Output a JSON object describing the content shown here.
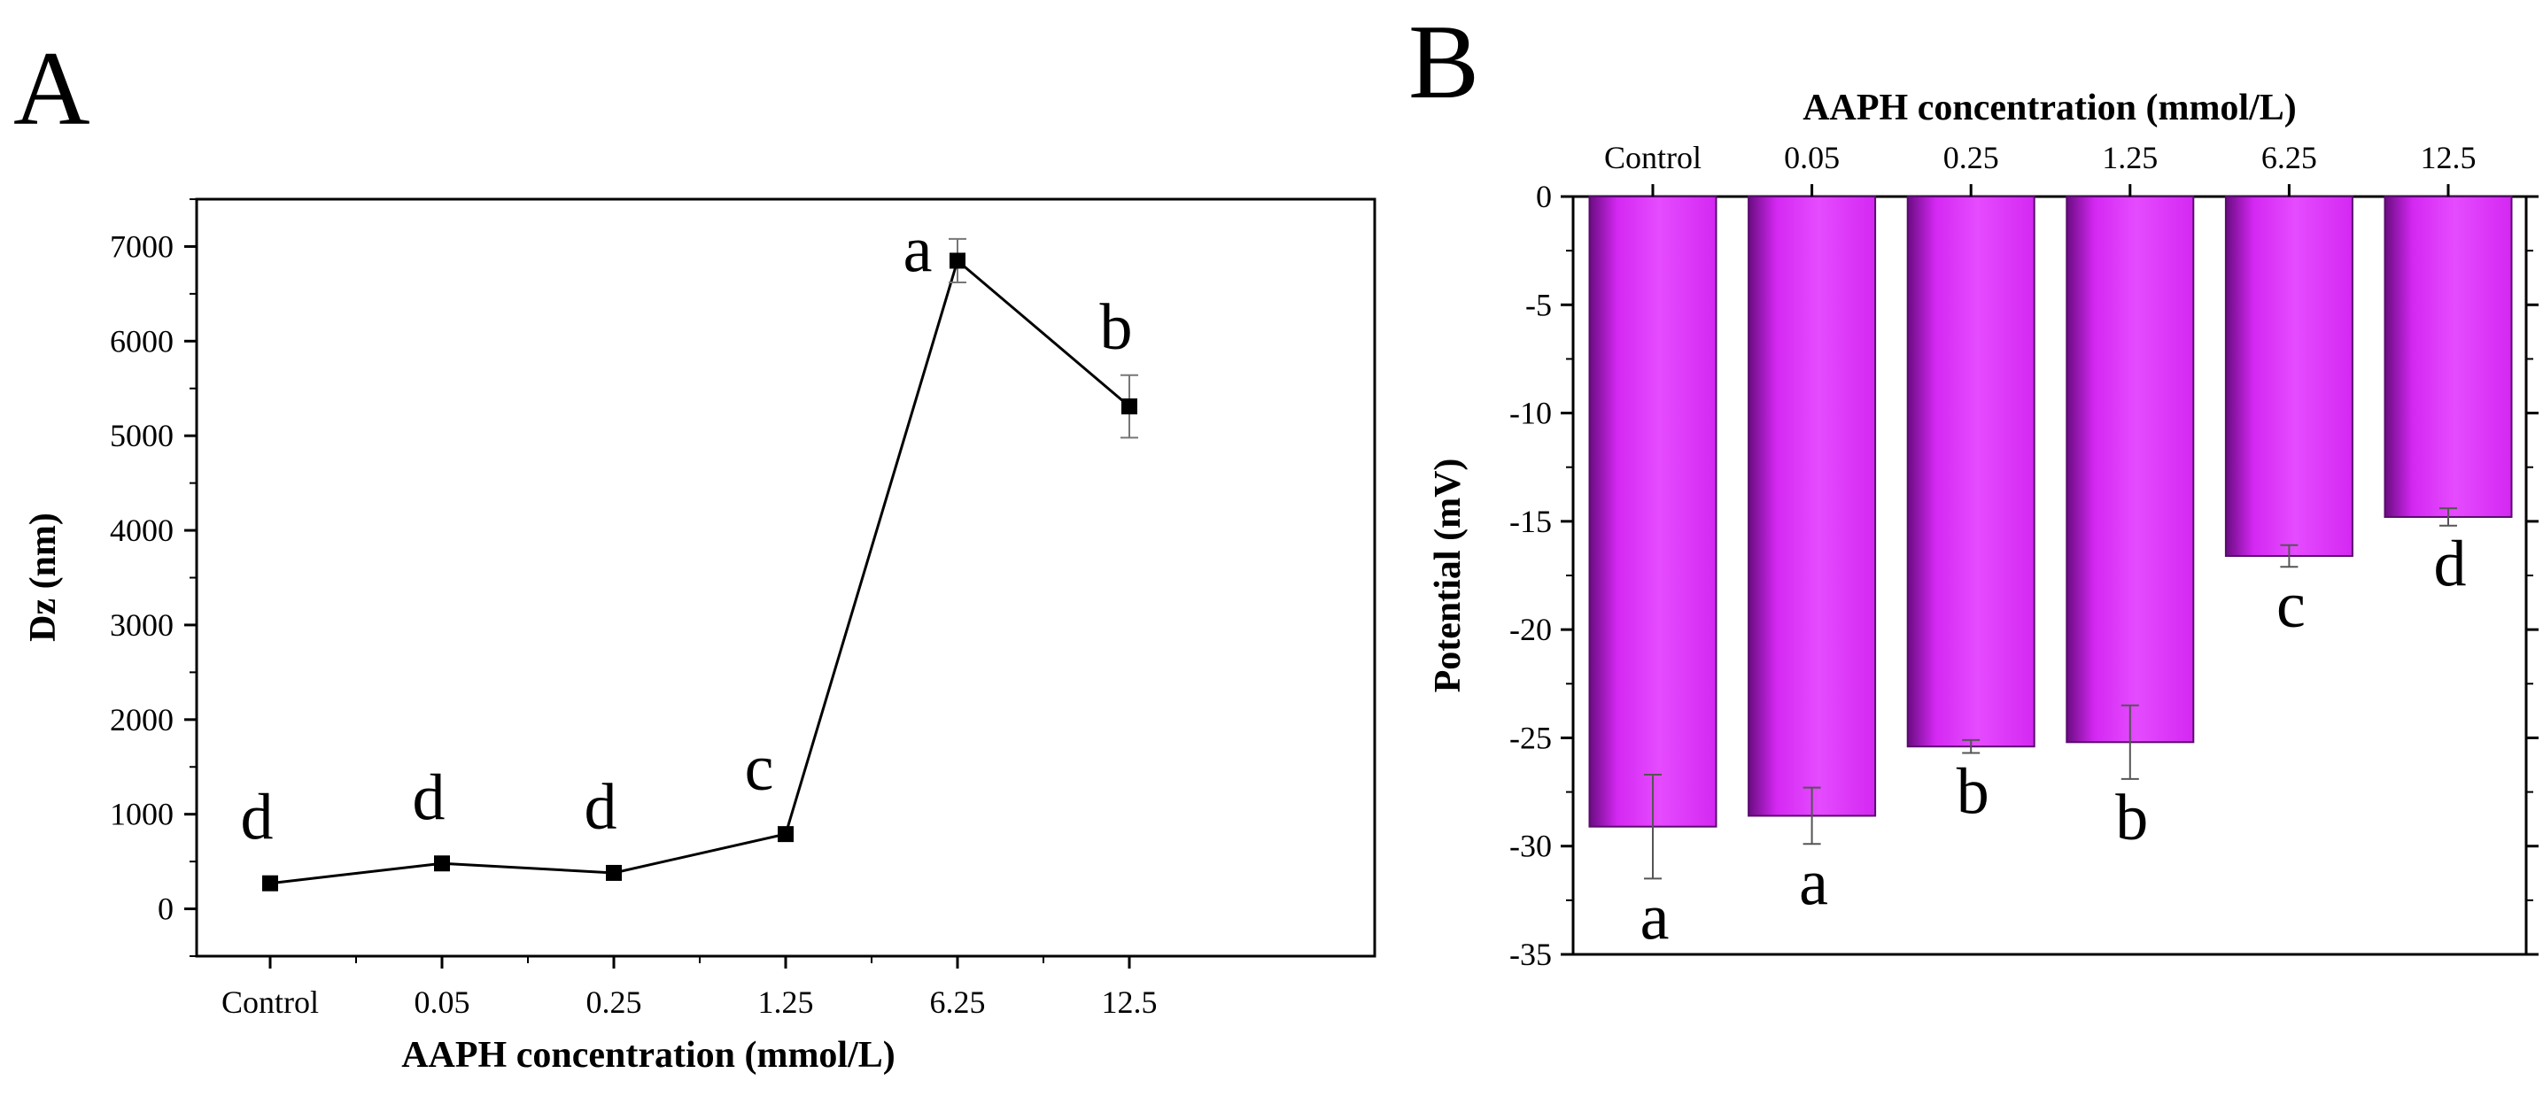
{
  "panels": [
    {
      "label": "A"
    },
    {
      "label": "B"
    }
  ],
  "chart_data": [
    {
      "type": "line",
      "panel": "A",
      "categories": [
        "Control",
        "0.05",
        "0.25",
        "1.25",
        "6.25",
        "12.5"
      ],
      "values": [
        270,
        480,
        380,
        790,
        6850,
        5310
      ],
      "errors": [
        0,
        0,
        0,
        0,
        230,
        330
      ],
      "significance": [
        "d",
        "d",
        "d",
        "c",
        "a",
        "b"
      ],
      "title": "",
      "xlabel": "AAPH concentration (mmol/L)",
      "ylabel": "Dz (nm)",
      "ylim": [
        -500,
        7500
      ],
      "yticks": [
        0,
        1000,
        2000,
        3000,
        4000,
        5000,
        6000,
        7000
      ],
      "yticklabels": [
        "0",
        "1000",
        "2000",
        "3000",
        "4000",
        "5000",
        "6000",
        "7000"
      ],
      "series_color": "#000000",
      "marker": "square",
      "grid": false
    },
    {
      "type": "bar",
      "panel": "B",
      "categories": [
        "Control",
        "0.05",
        "0.25",
        "1.25",
        "6.25",
        "12.5"
      ],
      "values": [
        -29.1,
        -28.6,
        -25.4,
        -25.2,
        -16.6,
        -14.8
      ],
      "errors": [
        2.4,
        1.3,
        0.3,
        1.7,
        0.5,
        0.4
      ],
      "significance": [
        "a",
        "a",
        "b",
        "b",
        "c",
        "d"
      ],
      "title": "",
      "xlabel": "AAPH concentration (mmol/L)",
      "ylabel": "Potential (mV)",
      "ylim": [
        -35,
        0
      ],
      "yticks": [
        0,
        -5,
        -10,
        -15,
        -20,
        -25,
        -30,
        -35
      ],
      "yticklabels": [
        "0",
        "-5",
        "-10",
        "-15",
        "-20",
        "-25",
        "-30",
        "-35"
      ],
      "bar_color": "#d428f2",
      "bar_edge_color": "#5a0a6e",
      "x_axis_position": "top",
      "grid": false
    }
  ]
}
